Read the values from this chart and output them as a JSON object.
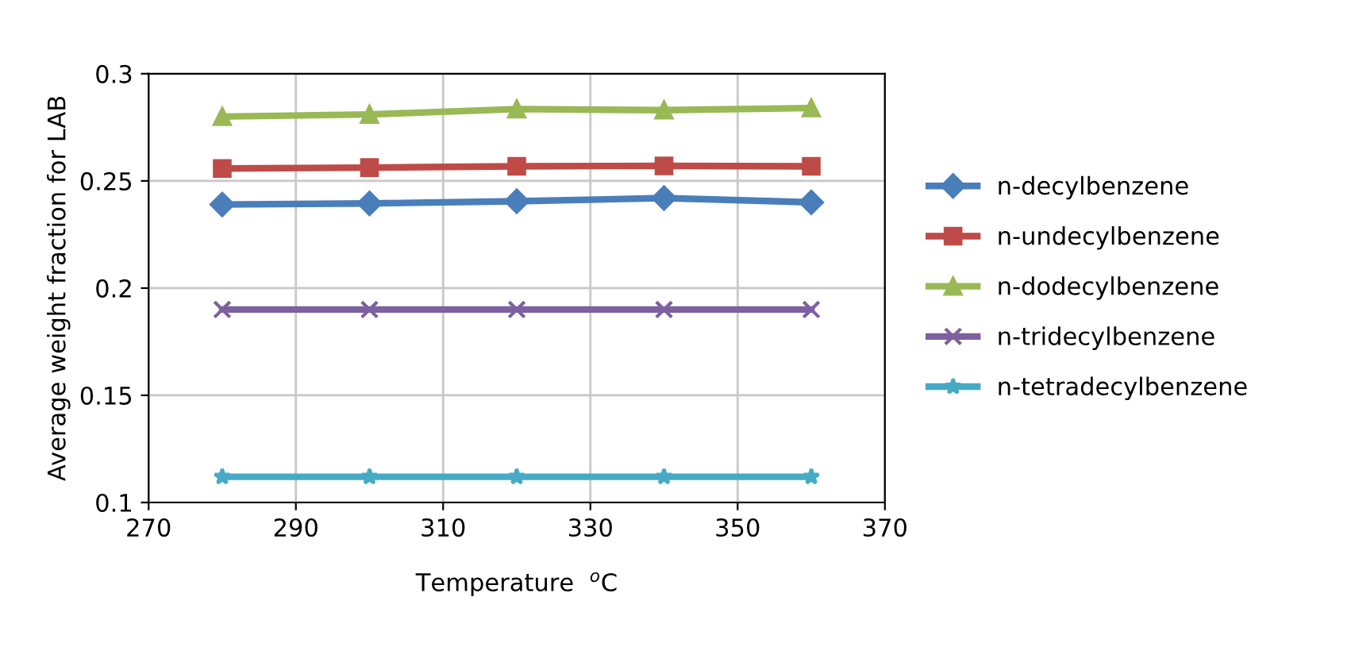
{
  "chart_data": {
    "type": "line",
    "xlabel": "Temperature  $^{o}$C",
    "ylabel": "Average weight fraction for LAB",
    "x": [
      280,
      300,
      320,
      340,
      360
    ],
    "series": [
      {
        "name": "n-decylbenzene",
        "color": "#4a7ebb",
        "marker": "diamond",
        "values": [
          0.239,
          0.2395,
          0.2405,
          0.242,
          0.24
        ]
      },
      {
        "name": "n-undecylbenzene",
        "color": "#be4b48",
        "marker": "square",
        "values": [
          0.2558,
          0.2562,
          0.2568,
          0.257,
          0.2568
        ]
      },
      {
        "name": "n-dodecylbenzene",
        "color": "#98b954",
        "marker": "triangle",
        "values": [
          0.28,
          0.281,
          0.2835,
          0.283,
          0.284
        ]
      },
      {
        "name": "n-tridecylbenzene",
        "color": "#7d60a0",
        "marker": "cross",
        "values": [
          0.19,
          0.19,
          0.19,
          0.19,
          0.19
        ]
      },
      {
        "name": "n-tetradecylbenzene",
        "color": "#46aac5",
        "marker": "star",
        "values": [
          0.112,
          0.112,
          0.112,
          0.112,
          0.112
        ]
      }
    ],
    "xlim": [
      270,
      370
    ],
    "xticks": [
      270,
      290,
      310,
      330,
      350,
      370
    ],
    "ylim": [
      0.1,
      0.3
    ],
    "yticks": [
      0.1,
      0.15,
      0.2,
      0.25,
      0.3
    ],
    "grid": true,
    "legend": "right",
    "line_style": "solid"
  }
}
